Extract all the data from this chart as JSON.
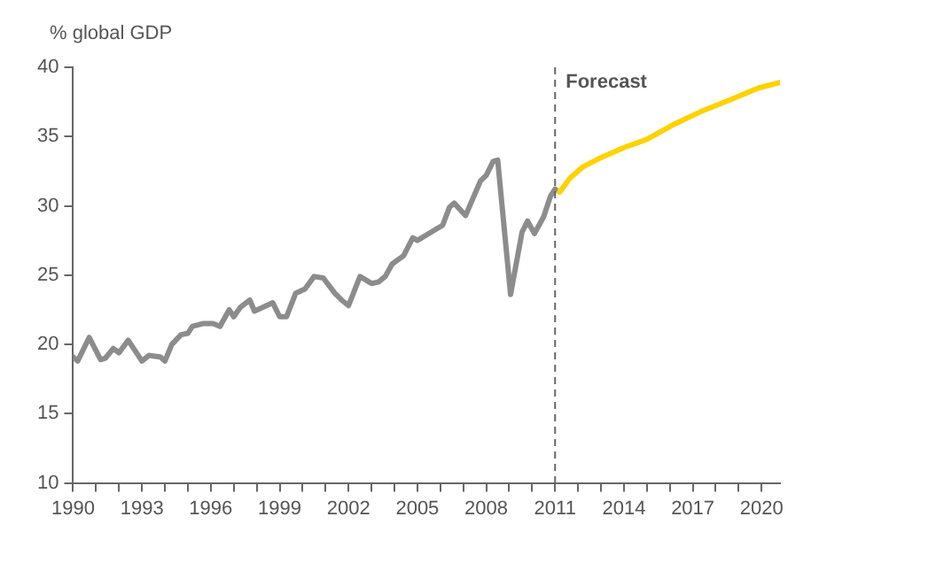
{
  "chart_data": {
    "type": "line",
    "ylabel": "% global GDP",
    "xlim": [
      1990,
      2020.8
    ],
    "ylim": [
      10,
      40
    ],
    "yticks": [
      10,
      15,
      20,
      25,
      30,
      35,
      40
    ],
    "xticks": [
      1990,
      {
        "value": 1991,
        "label": null
      },
      {
        "value": 1992,
        "label": null
      },
      1993,
      {
        "value": 1994,
        "label": null
      },
      {
        "value": 1995,
        "label": null
      },
      1996,
      {
        "value": 1997,
        "label": null
      },
      {
        "value": 1998,
        "label": null
      },
      1999,
      {
        "value": 2000,
        "label": null
      },
      {
        "value": 2001,
        "label": null
      },
      2002,
      {
        "value": 2003,
        "label": null
      },
      {
        "value": 2004,
        "label": null
      },
      2005,
      {
        "value": 2006,
        "label": null
      },
      {
        "value": 2007,
        "label": null
      },
      2008,
      {
        "value": 2009,
        "label": null
      },
      {
        "value": 2010,
        "label": null
      },
      2011,
      {
        "value": 2012,
        "label": null
      },
      {
        "value": 2013,
        "label": null
      },
      2014,
      {
        "value": 2015,
        "label": null
      },
      {
        "value": 2016,
        "label": null
      },
      2017,
      {
        "value": 2018,
        "label": null
      },
      {
        "value": 2019,
        "label": null
      },
      2020
    ],
    "legend": false,
    "marker": "none",
    "line_style": "solid",
    "ref_lines": [
      {
        "axis": "x",
        "value": 2011,
        "label": "Forecast",
        "color": "#666666",
        "line_style": "dashed"
      }
    ],
    "series": [
      {
        "color": "#8c8c8c",
        "x": [
          1990,
          1990.2,
          1990.7,
          1991.2,
          1991.4,
          1991.75,
          1992.0,
          1992.4,
          1993.0,
          1993.3,
          1993.8,
          1994.0,
          1994.3,
          1994.7,
          1995.0,
          1995.2,
          1995.65,
          1996.1,
          1996.4,
          1996.8,
          1997.0,
          1997.3,
          1997.7,
          1997.9,
          1998.3,
          1998.7,
          1999.0,
          1999.3,
          1999.7,
          2000.1,
          2000.5,
          2000.9,
          2001.4,
          2001.7,
          2002.0,
          2002.5,
          2003.0,
          2003.3,
          2003.6,
          2003.9,
          2004.4,
          2004.8,
          2005.0,
          2005.6,
          2006.1,
          2006.4,
          2006.6,
          2007.1,
          2007.75,
          2008.0,
          2008.3,
          2008.5,
          2009.06,
          2009.56,
          2009.8,
          2010.1,
          2010.5,
          2010.8,
          2011.0
        ],
        "values": [
          19.1,
          18.8,
          20.5,
          18.9,
          19.0,
          19.7,
          19.4,
          20.3,
          18.8,
          19.2,
          19.1,
          18.8,
          20.0,
          20.7,
          20.8,
          21.3,
          21.5,
          21.5,
          21.3,
          22.5,
          22.0,
          22.7,
          23.2,
          22.4,
          22.7,
          23.0,
          22.0,
          22.0,
          23.7,
          24.0,
          24.9,
          24.8,
          23.7,
          23.2,
          22.8,
          24.9,
          24.4,
          24.5,
          24.9,
          25.8,
          26.4,
          27.7,
          27.5,
          28.1,
          28.6,
          29.9,
          30.2,
          29.3,
          31.8,
          32.2,
          33.2,
          33.3,
          23.6,
          28.1,
          28.9,
          28.0,
          29.2,
          30.7,
          31.2
        ]
      },
      {
        "color": "#ffd200",
        "x": [
          2011.0,
          2011.2,
          2011.65,
          2012.2,
          2012.9,
          2014.0,
          2015.0,
          2016.2,
          2017.35,
          2018.7,
          2019.85,
          2020.8
        ],
        "values": [
          31.2,
          31.0,
          32.0,
          32.8,
          33.4,
          34.2,
          34.8,
          35.9,
          36.8,
          37.7,
          38.5,
          38.9
        ]
      }
    ]
  }
}
